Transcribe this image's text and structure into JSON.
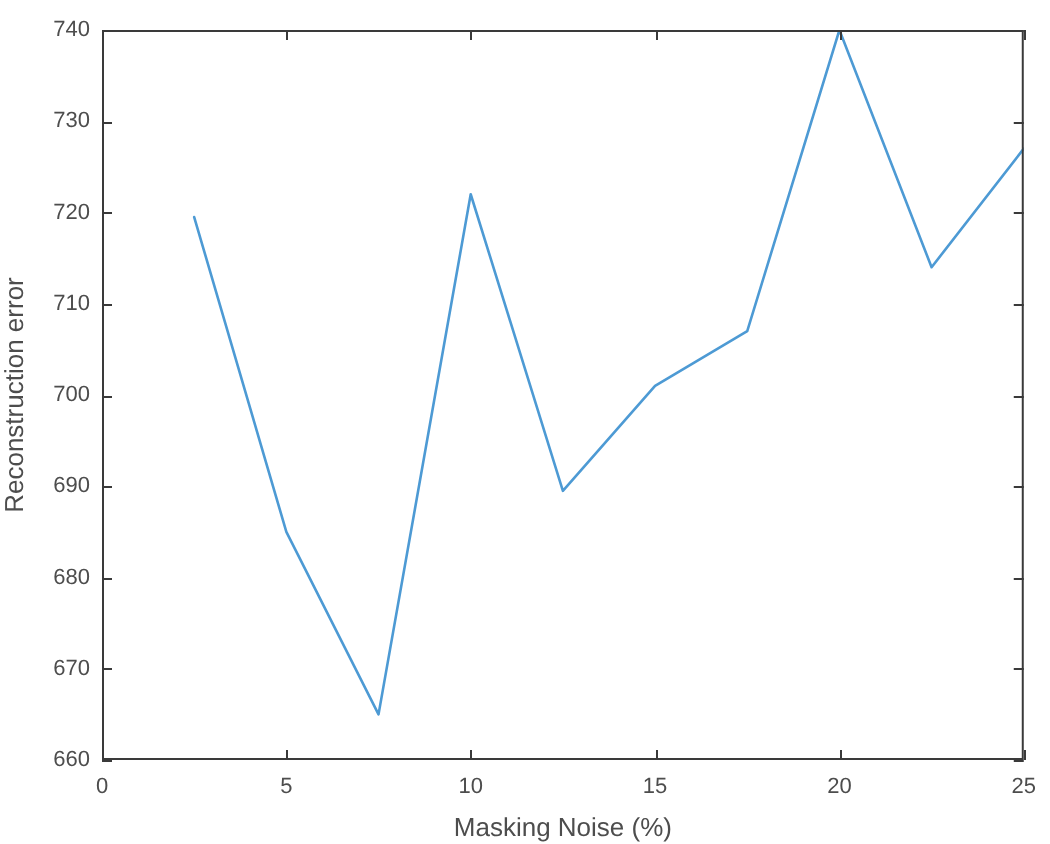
{
  "chart_data": {
    "type": "line",
    "xlabel": "Masking Noise (%)",
    "ylabel": "Reconstruction error",
    "x": [
      2.5,
      5,
      7.5,
      10,
      12.5,
      15,
      17.5,
      20,
      22.5,
      25
    ],
    "values": [
      719.5,
      685,
      665,
      722,
      689.5,
      701,
      707,
      740,
      714,
      727
    ],
    "color": "#4d9ad4",
    "xlim": [
      0,
      25
    ],
    "xticks": [
      0,
      5,
      10,
      15,
      20,
      25
    ],
    "ylim": [
      660,
      740
    ],
    "yticks": [
      660,
      670,
      680,
      690,
      700,
      710,
      720,
      730,
      740
    ]
  }
}
